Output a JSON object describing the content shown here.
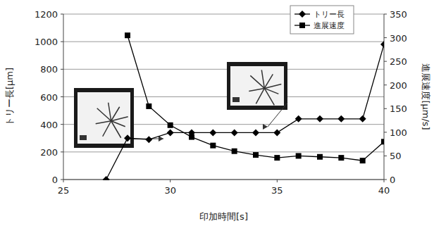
{
  "chart_data": {
    "type": "line",
    "x_label": "印加時間[s]",
    "y_label": "トリー長[μm]",
    "y2_label": "進展速度[μm/s]",
    "xlim": [
      25,
      40
    ],
    "xticks": [
      25,
      30,
      35,
      40
    ],
    "ylim": [
      0,
      1200
    ],
    "yticks": [
      0,
      200,
      400,
      600,
      800,
      1000,
      1200
    ],
    "y2lim": [
      0,
      350
    ],
    "y2ticks": [
      0,
      50,
      100,
      150,
      200,
      250,
      300,
      350
    ],
    "grid": true,
    "legend": "upper right",
    "x": [
      27,
      28,
      29,
      30,
      31,
      32,
      33,
      34,
      35,
      36,
      37,
      38,
      39,
      40
    ],
    "series": [
      {
        "name": "トリー長",
        "color": "#000000",
        "marker": "diamond",
        "values": [
          0,
          300,
          290,
          340,
          340,
          340,
          340,
          340,
          340,
          440,
          440,
          440,
          440,
          980
        ]
      },
      {
        "name": "進展速度",
        "color": "#000000",
        "marker": "square",
        "axis": "y2",
        "values": [
          null,
          305,
          155,
          115,
          90,
          72,
          60,
          52,
          46,
          50,
          48,
          46,
          40,
          80
        ]
      }
    ]
  }
}
